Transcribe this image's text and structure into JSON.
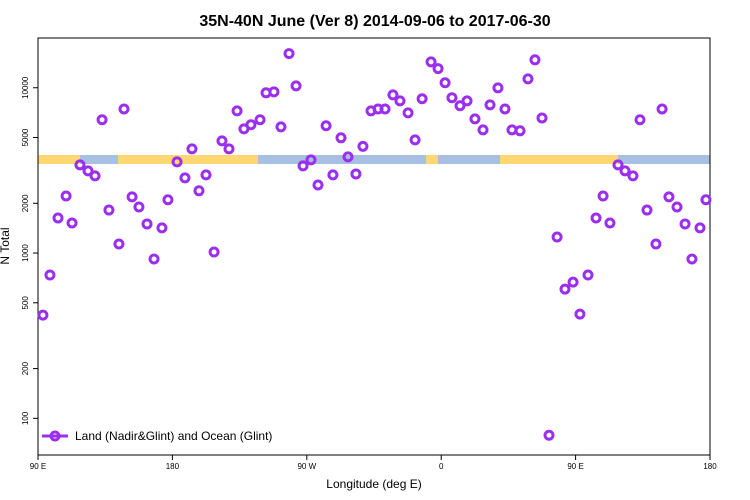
{
  "chart_data": {
    "type": "scatter",
    "title": "35N-40N June (Ver 8)   2014-09-06 to 2017-06-30",
    "x_label": "Longitude (deg E)",
    "y_label": "N Total",
    "log_y": true,
    "xlim": [
      90,
      540
    ],
    "xticks": [
      {
        "value": 90,
        "label": "90 E"
      },
      180,
      {
        "value": 270,
        "label": "90 W"
      },
      {
        "value": 360,
        "label": "0"
      },
      {
        "value": 450,
        "label": "90 E"
      },
      {
        "value": 540,
        "label": "180"
      }
    ],
    "ylim": [
      60,
      20000
    ],
    "yticks": [
      100,
      200,
      500,
      1000,
      2000,
      5000,
      10000
    ],
    "legend_position": "lower left",
    "series": [
      {
        "name": "Land (Nadir&Glint) and Ocean (Glint)",
        "color": "#9b2ff0",
        "x": [
          93.3,
          98,
          103.4,
          108.8,
          112.8,
          118.1,
          123.5,
          128.2,
          132.9,
          137.5,
          144.2,
          147.6,
          153,
          157.6,
          163,
          167.7,
          173,
          177,
          183.1,
          188.4,
          193.1,
          197.8,
          202.5,
          207.9,
          213.2,
          217.9,
          223.3,
          227.9,
          232.6,
          238.7,
          242.7,
          248,
          252.7,
          258.1,
          262.8,
          267.5,
          272.8,
          277.5,
          282.9,
          287.5,
          292.9,
          297.6,
          302.9,
          307.6,
          313,
          317.7,
          322.4,
          327.7,
          332.4,
          337.8,
          342.5,
          347.2,
          353.2,
          357.9,
          362.6,
          367.2,
          372.6,
          377.3,
          382.6,
          388,
          392.7,
          398,
          402.7,
          407.4,
          412.8,
          418.1,
          422.8,
          427.5,
          432.2,
          437.6,
          442.9,
          448.3,
          452.9,
          458.3,
          463.7,
          468.4,
          473,
          478.4,
          483.1,
          488.4,
          493.1,
          497.8,
          503.8,
          507.9,
          512.5,
          517.9,
          523.3,
          527.9,
          533.3,
          537.3
        ],
        "values": [
          421,
          736,
          1630,
          2214,
          1520,
          3415,
          3140,
          2930,
          6400,
          1820,
          1134,
          7440,
          2187,
          1900,
          1500,
          920,
          1420,
          2100,
          3560,
          2850,
          4270,
          2380,
          2970,
          1014,
          4770,
          4270,
          7250,
          5640,
          5970,
          6400,
          9320,
          9450,
          5800,
          16100,
          10270,
          3370,
          3660,
          2580,
          5890,
          2970,
          4980,
          3820,
          3010,
          4420,
          7250,
          7440,
          7440,
          9050,
          8330,
          7050,
          4840,
          8580,
          14350,
          13050,
          10720,
          8700,
          7780,
          8330,
          6480,
          5560,
          7880,
          9990,
          7440,
          5560,
          5490,
          11320,
          14760,
          6560,
          79,
          1250,
          605,
          667,
          427,
          736,
          1630,
          2214,
          1520,
          3415,
          3140,
          2930,
          6400,
          1820,
          1134,
          7440,
          2187,
          1900,
          1500,
          920,
          1420,
          2100
        ]
      }
    ]
  }
}
